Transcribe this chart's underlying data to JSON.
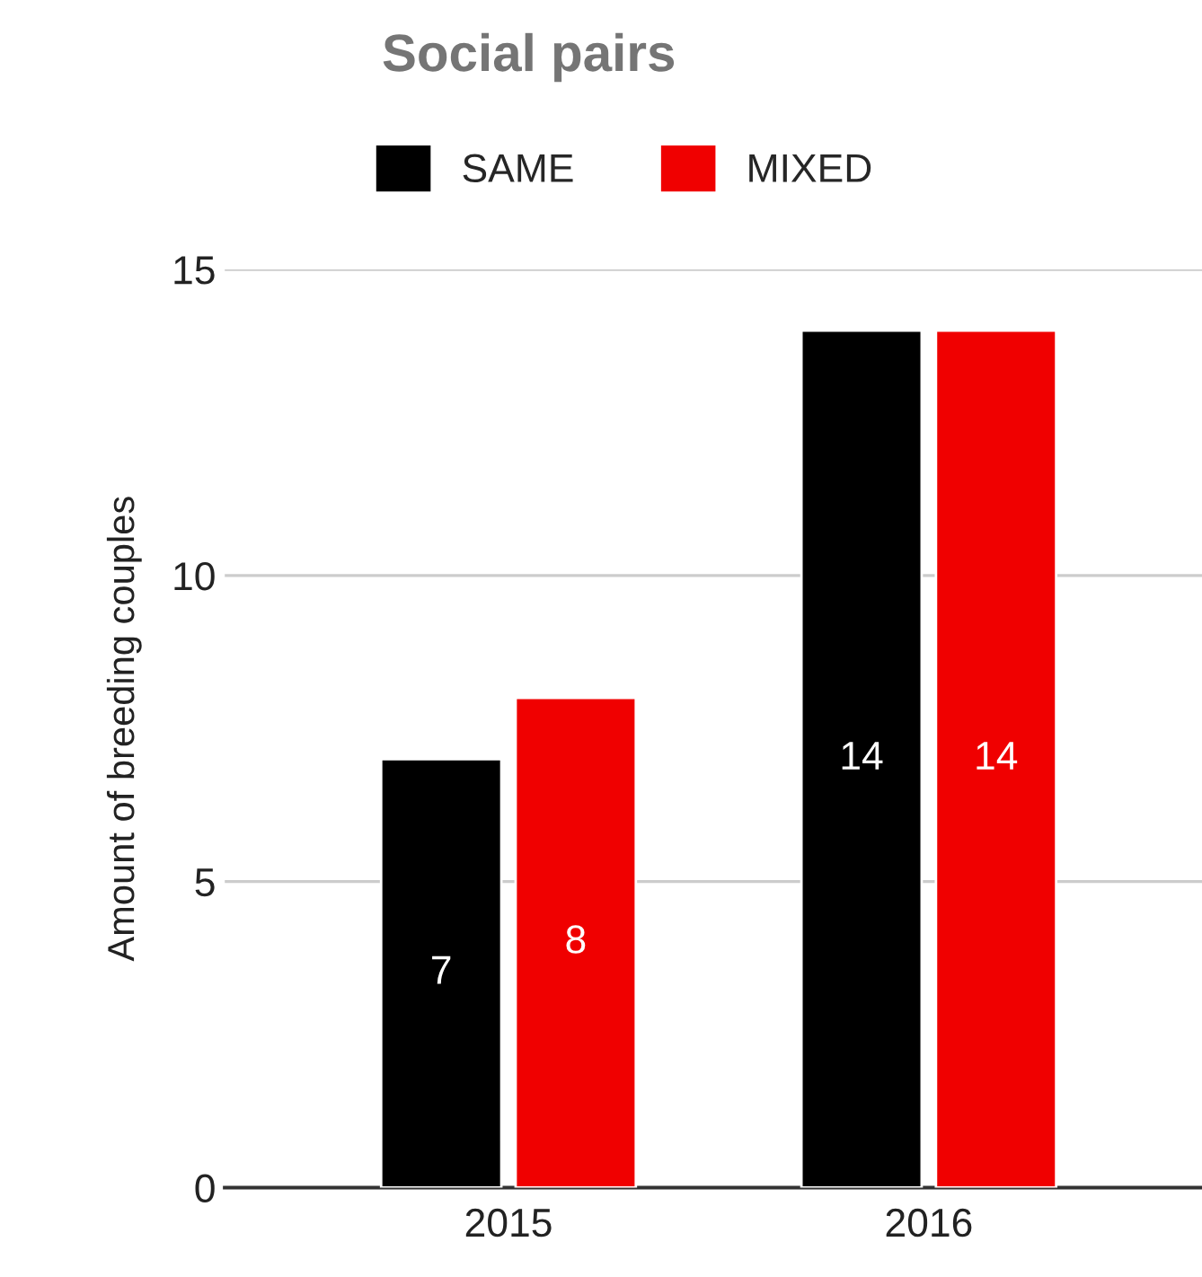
{
  "chart_data": {
    "type": "bar",
    "title": "Social pairs",
    "ylabel": "Amount of breeding couples",
    "categories": [
      "2015",
      "2016"
    ],
    "series": [
      {
        "name": "SAME",
        "color": "#000000",
        "values": [
          7,
          14
        ]
      },
      {
        "name": "MIXED",
        "color": "#f00000",
        "values": [
          8,
          14
        ]
      }
    ],
    "ylim": [
      0,
      15
    ],
    "yticks": [
      0,
      5,
      10,
      15
    ],
    "grid": "y",
    "legend": "top",
    "data_labels": true
  }
}
